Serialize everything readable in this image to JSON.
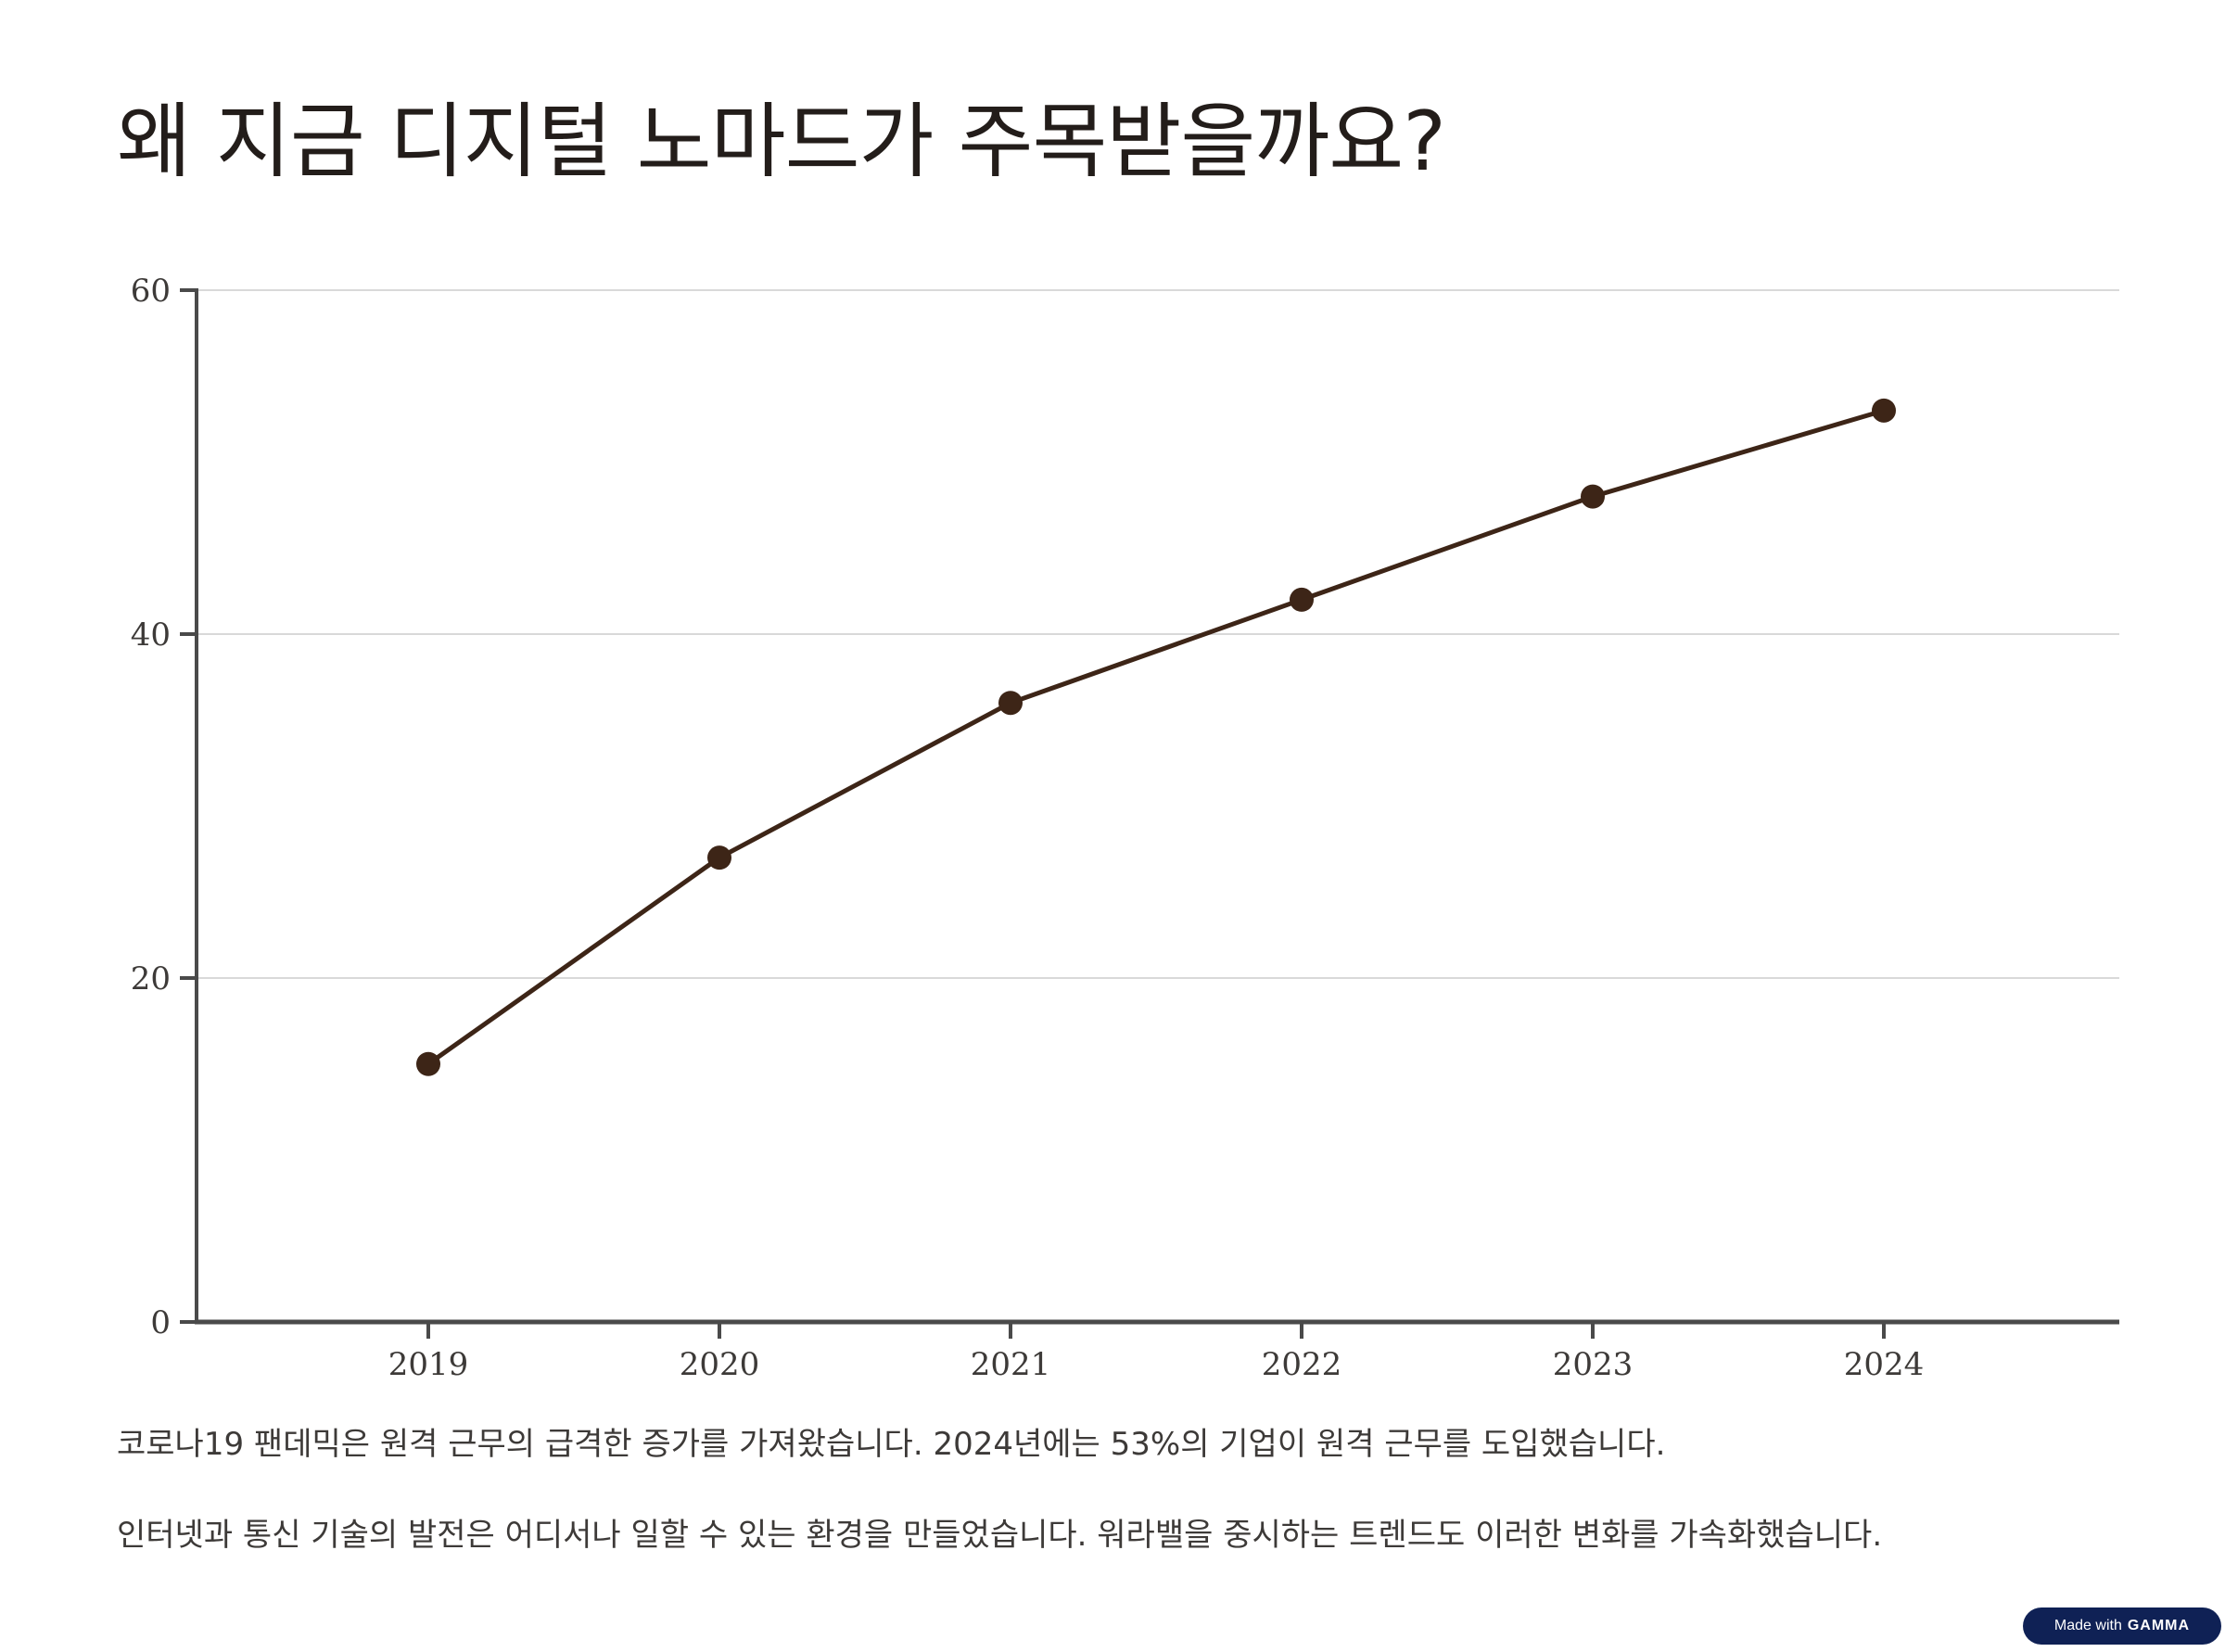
{
  "slide": {
    "title": "왜 지금 디지털 노마드가 주목받을까요?",
    "paragraphs": [
      "코로나19 팬데믹은 원격 근무의 급격한 증가를 가져왔습니다. 2024년에는 53%의 기업이 원격 근무를 도입했습니다.",
      "인터넷과 통신 기술의 발전은 어디서나 일할 수 있는 환경을 만들었습니다. 워라밸을 중시하는 트렌드도 이러한 변화를 가속화했습니다."
    ],
    "badge": {
      "prefix": "Made with",
      "brand": "GAMMA"
    }
  },
  "colors": {
    "line": "#3d2517",
    "axis": "#4a4a4a",
    "grid": "#d9d9d9",
    "text": "#231d1a",
    "badge_bg": "#0f2155"
  },
  "chart_data": {
    "type": "line",
    "x": [
      "2019",
      "2020",
      "2021",
      "2022",
      "2023",
      "2024"
    ],
    "series": [
      {
        "values": [
          15,
          27,
          36,
          42,
          48,
          53
        ]
      }
    ],
    "yticks": [
      0,
      20,
      40,
      60
    ],
    "ylim": [
      0,
      60
    ],
    "title": "",
    "xlabel": "",
    "ylabel": "",
    "grid": true,
    "markers": true
  }
}
